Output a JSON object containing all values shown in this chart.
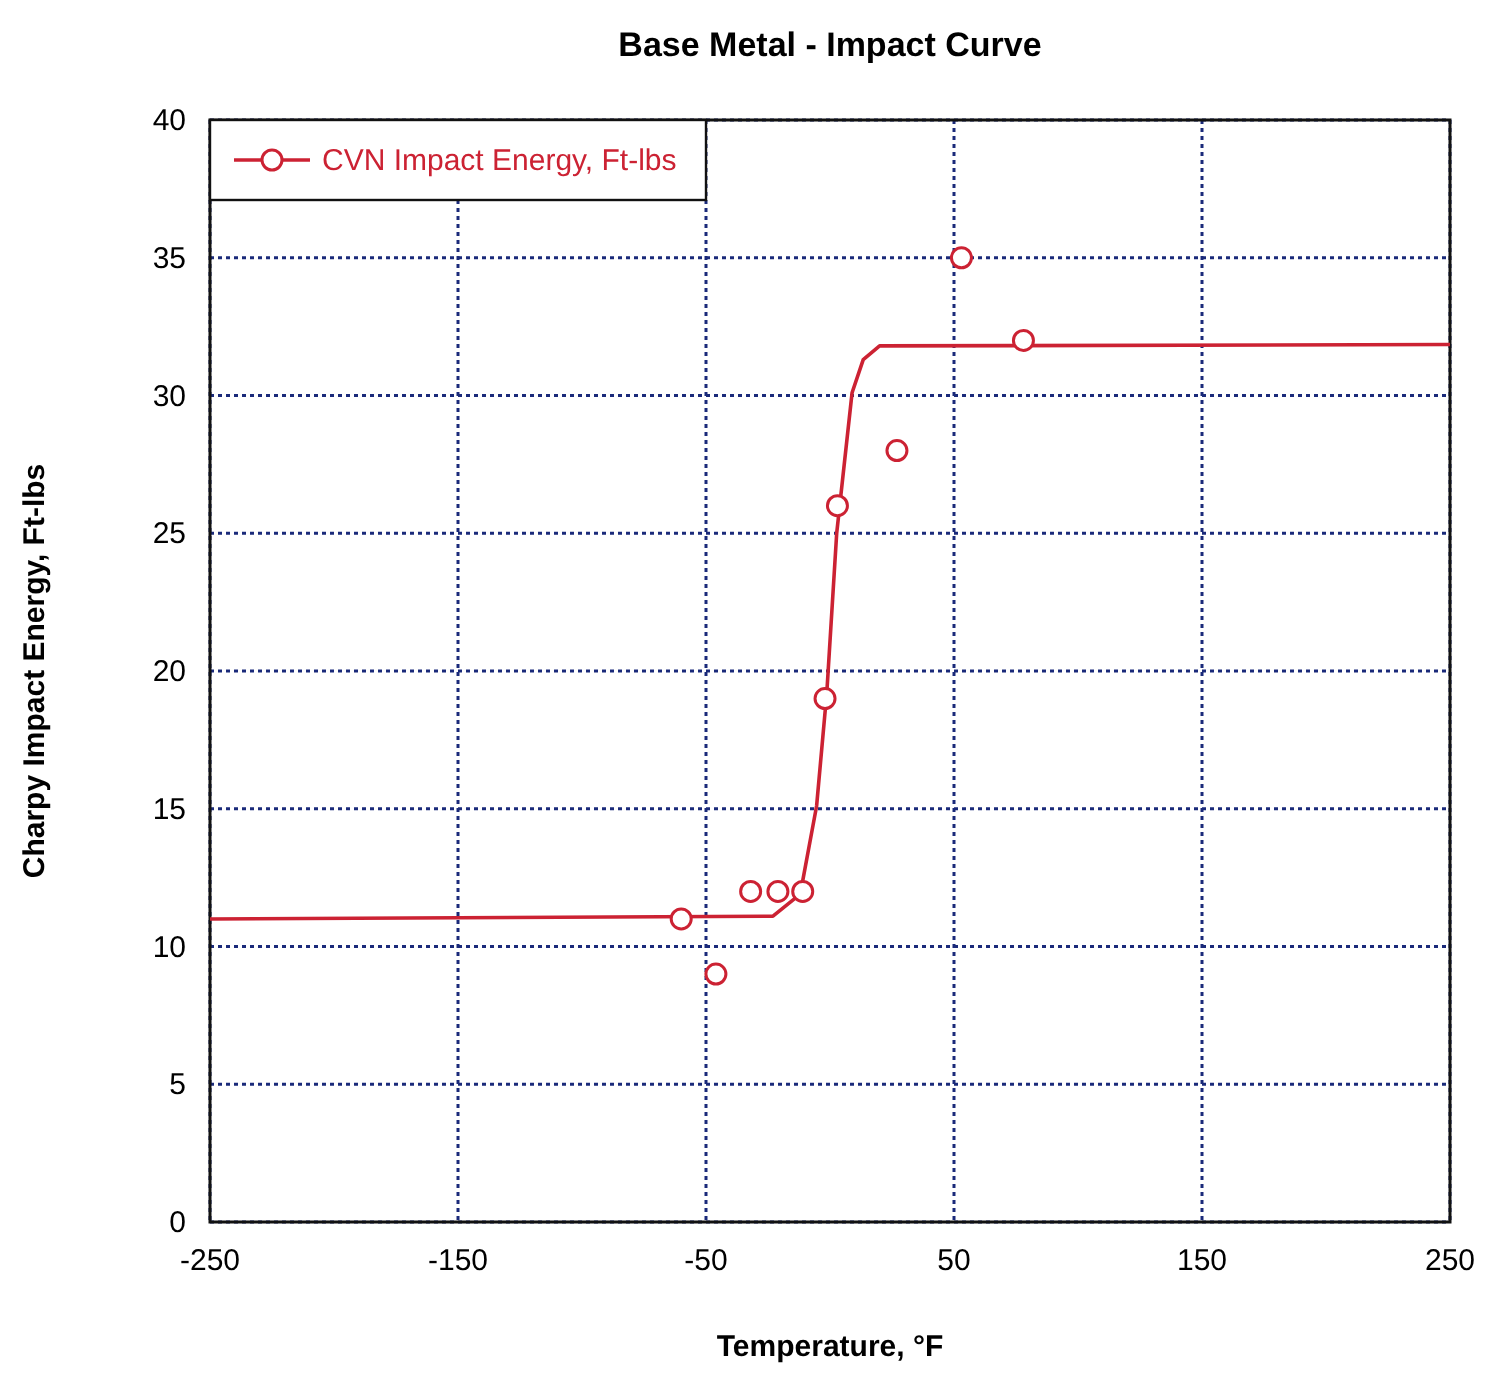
{
  "chart_data": {
    "type": "scatter",
    "title": "Base Metal - Impact Curve",
    "xlabel": "Temperature, °F",
    "ylabel": "Charpy Impact Energy, Ft-lbs",
    "xlim": [
      -250,
      250
    ],
    "xticks": [
      -250,
      -150,
      -50,
      50,
      150,
      250
    ],
    "ylim": [
      0,
      40
    ],
    "yticks": [
      0,
      5,
      10,
      15,
      20,
      25,
      30,
      35,
      40
    ],
    "grid": true,
    "legend": "top left",
    "series": [
      {
        "type": "line",
        "color": "#cc2233",
        "marker": "none",
        "x": [
          -250,
          -23,
          -12,
          -5.4,
          -1.3,
          2.7,
          8.9,
          13.4,
          20,
          250
        ],
        "values": [
          11,
          11.1,
          11.9,
          15.1,
          19.2,
          25,
          30.1,
          31.3,
          31.8,
          31.85
        ]
      },
      {
        "name": "CVN Impact Energy, Ft-lbs",
        "color": "#cc2233",
        "marker": "circle",
        "x": [
          -60,
          -46,
          -32,
          -21,
          -11,
          -2,
          3,
          27,
          53,
          78
        ],
        "values": [
          11,
          9,
          12,
          12,
          12,
          19,
          26,
          28,
          35,
          32
        ]
      }
    ]
  }
}
